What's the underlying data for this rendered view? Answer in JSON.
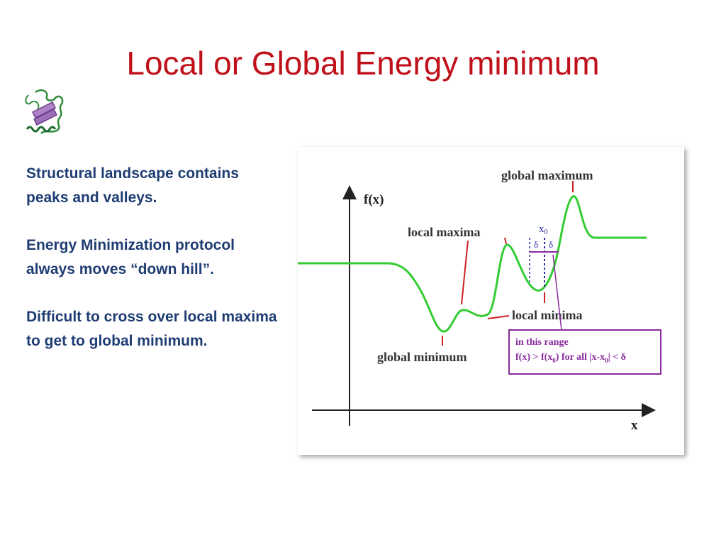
{
  "slide": {
    "title": "Local or Global Energy minimum",
    "bullets": [
      "Structural landscape contains peaks and valleys.",
      "Energy Minimization protocol always moves “down hill”.",
      "Difficult to cross over local maxima to get to global minimum."
    ]
  },
  "figure": {
    "y_axis_label": "f(x)",
    "x_axis_label": "x",
    "x0_label": "x",
    "x0_subscript": "0",
    "delta_label": "δ",
    "labels": {
      "global_maximum": "global maximum",
      "local_maxima": "local maxima",
      "local_minima": "local minima",
      "global_minimum": "global minimum"
    },
    "range_box": {
      "line1": "in this range",
      "line2_part1": "f(x) > f(x",
      "line2_sub1": "0",
      "line2_part2": ") for all |x-x",
      "line2_sub2": "0",
      "line2_part3": "| <  δ"
    },
    "colors": {
      "title": "#c0111b",
      "bullet_text": "#1f3d73",
      "curve": "#33cc33",
      "pointer": "#cc2222",
      "range": "#8a2a9e",
      "x0_marker": "#2a2aa8"
    }
  }
}
